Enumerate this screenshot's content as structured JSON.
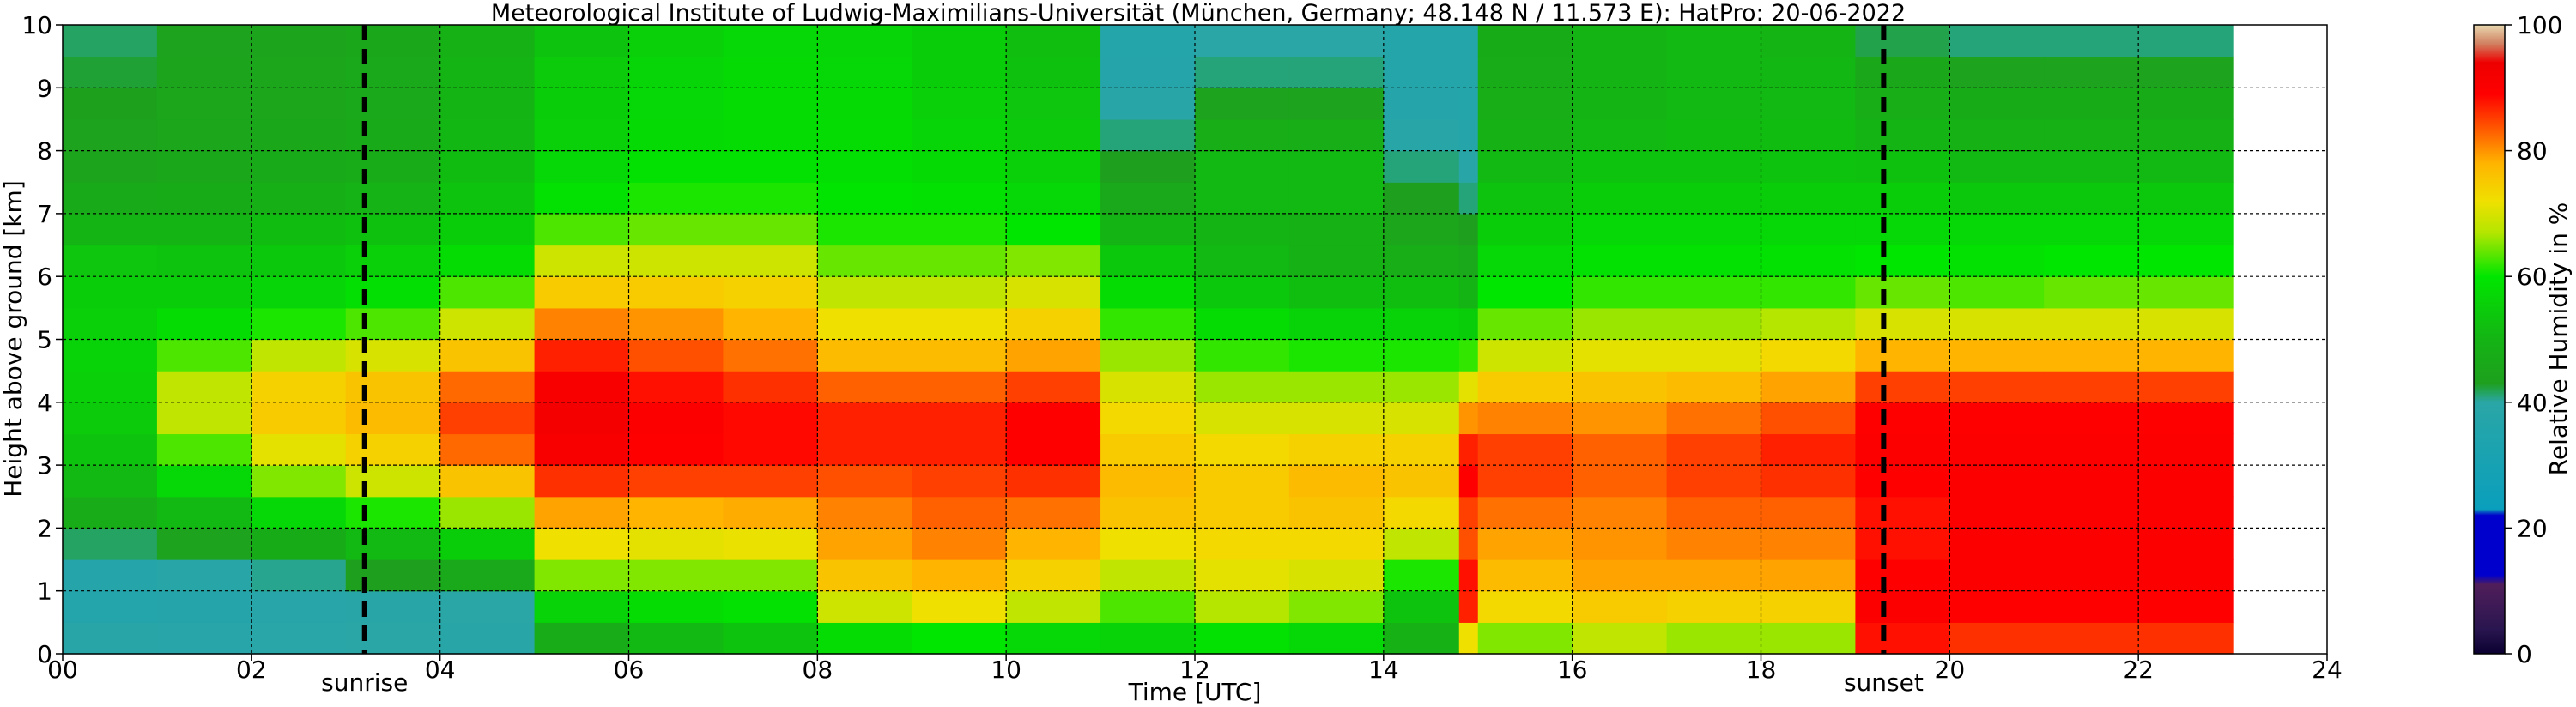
{
  "chart_data": {
    "type": "heatmap",
    "title": "Meteorological Institute of Ludwig-Maximilians-Universität (München, Germany; 48.148 N / 11.573 E):    HatPro: 20-06-2022",
    "xlabel": "Time [UTC]",
    "ylabel": "Height above ground [km]",
    "colorbar_label": "Relative Humidity in %",
    "xlim": [
      0,
      24
    ],
    "ylim": [
      0,
      10
    ],
    "data_extent_hours": [
      0,
      23
    ],
    "x_ticks": [
      "00",
      "02",
      "04",
      "06",
      "08",
      "10",
      "12",
      "14",
      "16",
      "18",
      "20",
      "22",
      "24"
    ],
    "y_ticks": [
      "0",
      "1",
      "2",
      "3",
      "4",
      "5",
      "6",
      "7",
      "8",
      "9",
      "10"
    ],
    "colorbar_ticks": [
      "0",
      "20",
      "40",
      "60",
      "80",
      "100"
    ],
    "colorbar_range": [
      0,
      100
    ],
    "grid": true,
    "grid_style": "dashed",
    "events": [
      {
        "label": "sunrise",
        "hour": 3.2
      },
      {
        "label": "sunset",
        "hour": 19.3
      }
    ],
    "colorscale": [
      {
        "value": 0,
        "color": "#0a0030"
      },
      {
        "value": 4,
        "color": "#2a1650"
      },
      {
        "value": 11,
        "color": "#501e5a"
      },
      {
        "value": 12.5,
        "color": "#0000cc"
      },
      {
        "value": 22,
        "color": "#0000cc"
      },
      {
        "value": 23,
        "color": "#0a9fbc"
      },
      {
        "value": 40,
        "color": "#2aa6a6"
      },
      {
        "value": 43,
        "color": "#1ea01e"
      },
      {
        "value": 50,
        "color": "#14b414"
      },
      {
        "value": 60,
        "color": "#00e600"
      },
      {
        "value": 67,
        "color": "#b4e600"
      },
      {
        "value": 72,
        "color": "#f0e000"
      },
      {
        "value": 78,
        "color": "#ffb400"
      },
      {
        "value": 84,
        "color": "#ff5000"
      },
      {
        "value": 89,
        "color": "#ff0000"
      },
      {
        "value": 94,
        "color": "#ee0000"
      },
      {
        "value": 97,
        "color": "#d08060"
      },
      {
        "value": 100,
        "color": "#e8d8b0"
      }
    ],
    "humidity_profiles": {
      "heights_km": [
        0,
        0.5,
        1,
        1.5,
        2,
        2.5,
        3,
        3.5,
        4,
        4.5,
        5,
        5.5,
        6,
        6.5,
        7,
        7.5,
        8,
        8.5,
        9,
        9.5,
        10
      ],
      "profiles": [
        {
          "hour": 0,
          "rh": [
            42,
            36,
            37,
            38,
            45,
            50,
            52,
            54,
            55,
            56,
            56,
            55,
            55,
            52,
            48,
            45,
            44,
            44,
            43,
            42,
            41
          ]
        },
        {
          "hour": 1,
          "rh": [
            40,
            37,
            38,
            40,
            48,
            54,
            60,
            66,
            70,
            66,
            60,
            56,
            54,
            52,
            48,
            46,
            45,
            45,
            45,
            44,
            44
          ]
        },
        {
          "hour": 2,
          "rh": [
            41,
            38,
            39,
            42,
            52,
            62,
            68,
            74,
            76,
            72,
            64,
            58,
            55,
            53,
            50,
            47,
            46,
            45,
            45,
            45,
            44
          ]
        },
        {
          "hour": 3,
          "rh": [
            42,
            38,
            40,
            46,
            56,
            66,
            72,
            76,
            78,
            74,
            66,
            60,
            57,
            54,
            51,
            48,
            47,
            46,
            46,
            46,
            45
          ]
        },
        {
          "hour": 4,
          "rh": [
            40,
            38,
            42,
            50,
            60,
            72,
            80,
            85,
            85,
            80,
            72,
            66,
            60,
            56,
            54,
            52,
            51,
            50,
            50,
            50,
            48
          ]
        },
        {
          "hour": 5,
          "rh": [
            45,
            50,
            62,
            68,
            76,
            82,
            90,
            92,
            92,
            90,
            84,
            78,
            72,
            66,
            60,
            58,
            56,
            55,
            55,
            54,
            52
          ]
        },
        {
          "hour": 6,
          "rh": [
            48,
            54,
            62,
            68,
            74,
            82,
            88,
            90,
            90,
            86,
            82,
            78,
            72,
            66,
            62,
            60,
            58,
            57,
            57,
            56,
            55
          ]
        },
        {
          "hour": 7,
          "rh": [
            50,
            56,
            62,
            68,
            75,
            82,
            88,
            89,
            88,
            84,
            80,
            76,
            72,
            66,
            62,
            60,
            58,
            58,
            58,
            57,
            57
          ]
        },
        {
          "hour": 8,
          "rh": [
            52,
            64,
            74,
            78,
            80,
            82,
            86,
            88,
            86,
            80,
            74,
            70,
            66,
            62,
            60,
            59,
            58,
            58,
            57,
            57,
            56
          ]
        },
        {
          "hour": 9,
          "rh": [
            52,
            68,
            76,
            80,
            82,
            84,
            86,
            88,
            86,
            80,
            74,
            70,
            66,
            62,
            60,
            58,
            57,
            56,
            55,
            55,
            55
          ]
        },
        {
          "hour": 10,
          "rh": [
            50,
            64,
            72,
            76,
            80,
            84,
            88,
            90,
            88,
            82,
            76,
            72,
            68,
            62,
            58,
            56,
            55,
            54,
            53,
            52,
            52
          ]
        },
        {
          "hour": 11,
          "rh": [
            52,
            60,
            66,
            70,
            74,
            78,
            76,
            74,
            72,
            68,
            64,
            60,
            56,
            52,
            48,
            44,
            42,
            40,
            38,
            37,
            37
          ]
        },
        {
          "hour": 12,
          "rh": [
            54,
            64,
            70,
            72,
            74,
            76,
            74,
            72,
            68,
            64,
            60,
            56,
            52,
            50,
            50,
            52,
            50,
            46,
            42,
            40,
            40
          ]
        },
        {
          "hour": 13,
          "rh": [
            52,
            62,
            68,
            72,
            74,
            78,
            76,
            72,
            68,
            64,
            58,
            54,
            50,
            48,
            50,
            52,
            50,
            46,
            42,
            40,
            40
          ]
        },
        {
          "hour": 14,
          "rh": [
            48,
            50,
            56,
            66,
            70,
            76,
            76,
            72,
            68,
            64,
            58,
            54,
            50,
            46,
            44,
            42,
            40,
            38,
            37,
            37,
            37
          ]
        },
        {
          "hour": 14.8,
          "rh": [
            60,
            84,
            90,
            86,
            82,
            88,
            90,
            84,
            76,
            66,
            58,
            52,
            48,
            44,
            42,
            40,
            38,
            37,
            37,
            37,
            37
          ]
        },
        {
          "hour": 15,
          "rh": [
            60,
            70,
            76,
            78,
            80,
            84,
            86,
            84,
            78,
            72,
            66,
            62,
            58,
            56,
            54,
            52,
            50,
            48,
            48,
            47,
            47
          ]
        },
        {
          "hour": 16,
          "rh": [
            64,
            72,
            78,
            80,
            80,
            82,
            84,
            82,
            78,
            74,
            68,
            64,
            60,
            58,
            56,
            54,
            52,
            50,
            50,
            50,
            50
          ]
        },
        {
          "hour": 17,
          "rh": [
            62,
            70,
            78,
            80,
            82,
            84,
            86,
            84,
            80,
            74,
            68,
            64,
            60,
            58,
            56,
            54,
            52,
            51,
            51,
            51,
            51
          ]
        },
        {
          "hour": 18,
          "rh": [
            62,
            70,
            78,
            80,
            82,
            84,
            88,
            86,
            82,
            76,
            70,
            64,
            60,
            58,
            56,
            54,
            52,
            51,
            51,
            50,
            50
          ]
        },
        {
          "hour": 19,
          "rh": [
            86,
            90,
            90,
            88,
            88,
            88,
            90,
            90,
            88,
            82,
            74,
            66,
            62,
            58,
            56,
            54,
            51,
            49,
            47,
            44,
            40
          ]
        },
        {
          "hour": 20,
          "rh": [
            84,
            88,
            90,
            90,
            90,
            90,
            90,
            90,
            88,
            82,
            74,
            66,
            60,
            58,
            56,
            52,
            50,
            48,
            46,
            42,
            40
          ]
        },
        {
          "hour": 21,
          "rh": [
            84,
            88,
            90,
            90,
            90,
            90,
            90,
            90,
            88,
            82,
            74,
            66,
            62,
            58,
            56,
            52,
            50,
            48,
            46,
            42,
            40
          ]
        },
        {
          "hour": 22,
          "rh": [
            84,
            88,
            90,
            90,
            90,
            90,
            90,
            90,
            88,
            82,
            74,
            66,
            62,
            58,
            56,
            52,
            50,
            48,
            46,
            42,
            40
          ]
        },
        {
          "hour": 23,
          "rh": [
            84,
            88,
            90,
            90,
            90,
            90,
            90,
            90,
            88,
            82,
            74,
            66,
            62,
            58,
            56,
            52,
            50,
            48,
            46,
            42,
            40
          ]
        }
      ]
    }
  }
}
